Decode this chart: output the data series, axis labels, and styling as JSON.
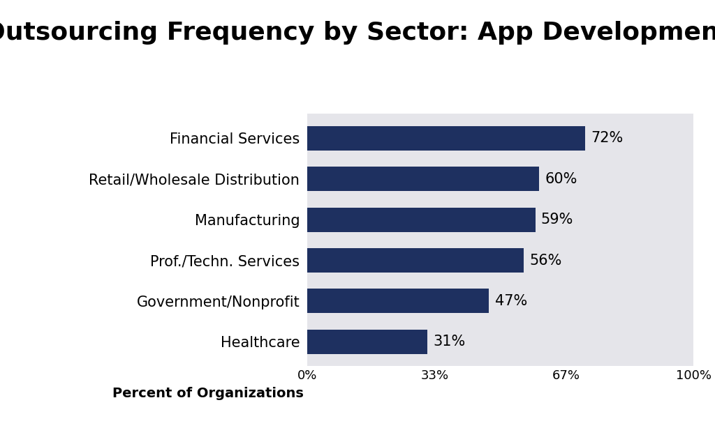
{
  "title": "Outsourcing Frequency by Sector: App Development",
  "categories": [
    "Healthcare",
    "Government/Nonprofit",
    "Prof./Techn. Services",
    "Manufacturing",
    "Retail/Wholesale Distribution",
    "Financial Services"
  ],
  "values": [
    31,
    47,
    56,
    59,
    60,
    72
  ],
  "bar_color": "#1e3060",
  "background_color": "#ffffff",
  "plot_bg_color": "#e5e5ea",
  "xlabel": "Percent of Organizations",
  "title_fontsize": 26,
  "title_fontweight": "bold",
  "xtick_labels": [
    "0%",
    "33%",
    "67%",
    "100%"
  ],
  "xtick_values": [
    0,
    33,
    67,
    100
  ],
  "xlim": [
    0,
    100
  ],
  "value_label_fontsize": 15,
  "category_fontsize": 15,
  "bar_height": 0.6
}
